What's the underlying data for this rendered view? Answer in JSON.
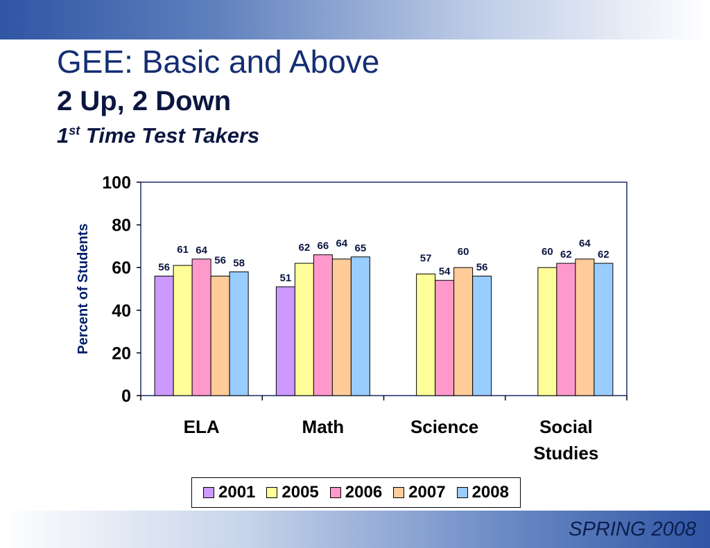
{
  "slide": {
    "title": "GEE: Basic and Above",
    "subtitle": "2 Up, 2 Down",
    "subtitle2_prefix": "1",
    "subtitle2_sup": "st",
    "subtitle2_rest": " Time Test Takers",
    "footer": "SPRING 2008"
  },
  "chart_data": {
    "type": "bar",
    "categories": [
      "ELA",
      "Math",
      "Science",
      "Social Studies"
    ],
    "series": [
      {
        "name": "2001",
        "color": "#cc99ff",
        "values": [
          56,
          51,
          null,
          null
        ]
      },
      {
        "name": "2005",
        "color": "#ffff99",
        "values": [
          61,
          62,
          57,
          60
        ]
      },
      {
        "name": "2006",
        "color": "#ff99cc",
        "values": [
          64,
          66,
          54,
          62
        ]
      },
      {
        "name": "2007",
        "color": "#ffcc99",
        "values": [
          56,
          64,
          60,
          64
        ]
      },
      {
        "name": "2008",
        "color": "#99ccff",
        "values": [
          58,
          65,
          56,
          62
        ]
      }
    ],
    "ylabel": "Percent of Students",
    "xlabel": "",
    "ylim": [
      0,
      100
    ],
    "yticks": [
      0,
      20,
      40,
      60,
      80,
      100
    ],
    "grid": false,
    "legend": "bottom"
  }
}
